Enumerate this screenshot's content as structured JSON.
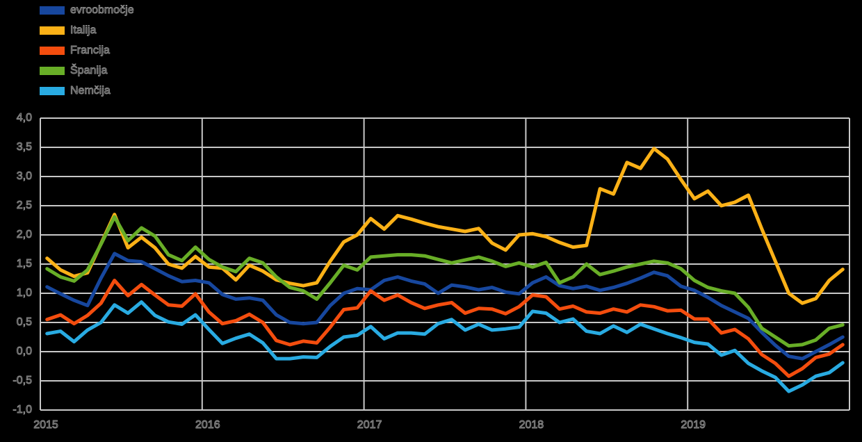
{
  "background_color": "#000000",
  "legend": {
    "position": "top-left",
    "items": [
      {
        "label": "evroobmočje",
        "color": "#17479E"
      },
      {
        "label": "Italija",
        "color": "#FBB117"
      },
      {
        "label": "Francija",
        "color": "#F44D0E"
      },
      {
        "label": "Španija",
        "color": "#68AE27"
      },
      {
        "label": "Nemčija",
        "color": "#29ABE2"
      }
    ]
  },
  "chart_data": {
    "type": "line",
    "title": "",
    "xlabel": "",
    "ylabel": "",
    "frequency": "monthly",
    "x_start": "2015-01",
    "x_end": "2019-12",
    "x_tick_labels": [
      "2015",
      "2016",
      "2017",
      "2018",
      "2019"
    ],
    "y_axis": {
      "min": -1.0,
      "max": 4.0,
      "step": 0.5,
      "tick_labels": [
        "4,0",
        "3,5",
        "3,0",
        "2,5",
        "2,0",
        "1,5",
        "1,0",
        "0,5",
        "0,0",
        "-0,5",
        "-1,0"
      ]
    },
    "grid": true,
    "grid_color": "#C8C8C8",
    "legend_position": "top-left",
    "series": [
      {
        "name": "evroobmočje",
        "color": "#17479E",
        "values": [
          1.11,
          0.99,
          0.88,
          0.79,
          1.26,
          1.68,
          1.56,
          1.54,
          1.42,
          1.3,
          1.2,
          1.22,
          1.18,
          0.98,
          0.9,
          0.92,
          0.88,
          0.63,
          0.5,
          0.48,
          0.5,
          0.79,
          1.0,
          1.08,
          1.06,
          1.22,
          1.28,
          1.21,
          1.16,
          1.0,
          1.14,
          1.11,
          1.06,
          1.1,
          1.02,
          0.99,
          1.18,
          1.28,
          1.13,
          1.08,
          1.12,
          1.05,
          1.1,
          1.17,
          1.26,
          1.36,
          1.3,
          1.12,
          1.05,
          0.93,
          0.79,
          0.68,
          0.57,
          0.33,
          0.11,
          -0.08,
          -0.12,
          0.0,
          0.12,
          0.25
        ]
      },
      {
        "name": "Italija",
        "color": "#FBB117",
        "values": [
          1.6,
          1.4,
          1.29,
          1.35,
          1.85,
          2.35,
          1.78,
          1.96,
          1.78,
          1.5,
          1.43,
          1.63,
          1.45,
          1.43,
          1.23,
          1.48,
          1.38,
          1.23,
          1.17,
          1.13,
          1.18,
          1.55,
          1.88,
          2.0,
          2.28,
          2.1,
          2.33,
          2.27,
          2.2,
          2.14,
          2.1,
          2.06,
          2.11,
          1.86,
          1.74,
          2.0,
          2.02,
          1.97,
          1.87,
          1.79,
          1.82,
          2.79,
          2.7,
          3.24,
          3.14,
          3.48,
          3.3,
          2.95,
          2.62,
          2.75,
          2.5,
          2.56,
          2.68,
          2.1,
          1.55,
          1.0,
          0.83,
          0.91,
          1.22,
          1.41
        ]
      },
      {
        "name": "Francija",
        "color": "#F44D0E",
        "values": [
          0.55,
          0.63,
          0.48,
          0.62,
          0.83,
          1.22,
          0.96,
          1.15,
          0.97,
          0.8,
          0.78,
          0.99,
          0.68,
          0.48,
          0.53,
          0.64,
          0.5,
          0.19,
          0.12,
          0.18,
          0.15,
          0.42,
          0.72,
          0.75,
          1.04,
          0.88,
          0.97,
          0.84,
          0.74,
          0.8,
          0.84,
          0.66,
          0.74,
          0.73,
          0.65,
          0.77,
          0.97,
          0.94,
          0.73,
          0.78,
          0.68,
          0.66,
          0.73,
          0.68,
          0.8,
          0.77,
          0.7,
          0.71,
          0.56,
          0.56,
          0.32,
          0.38,
          0.22,
          -0.05,
          -0.2,
          -0.42,
          -0.29,
          -0.1,
          -0.04,
          0.12
        ]
      },
      {
        "name": "Španija",
        "color": "#68AE27",
        "values": [
          1.42,
          1.28,
          1.21,
          1.4,
          1.84,
          2.31,
          1.9,
          2.12,
          1.98,
          1.66,
          1.56,
          1.79,
          1.58,
          1.45,
          1.37,
          1.6,
          1.52,
          1.28,
          1.1,
          1.04,
          0.9,
          1.18,
          1.48,
          1.4,
          1.62,
          1.64,
          1.66,
          1.66,
          1.64,
          1.58,
          1.52,
          1.57,
          1.62,
          1.55,
          1.46,
          1.52,
          1.45,
          1.53,
          1.18,
          1.28,
          1.5,
          1.32,
          1.38,
          1.45,
          1.5,
          1.55,
          1.52,
          1.42,
          1.22,
          1.1,
          1.04,
          1.0,
          0.76,
          0.4,
          0.25,
          0.1,
          0.12,
          0.2,
          0.4,
          0.46
        ]
      },
      {
        "name": "Nemčija",
        "color": "#29ABE2",
        "values": [
          0.31,
          0.35,
          0.17,
          0.37,
          0.5,
          0.8,
          0.66,
          0.85,
          0.62,
          0.51,
          0.47,
          0.63,
          0.38,
          0.14,
          0.23,
          0.3,
          0.15,
          -0.12,
          -0.12,
          -0.09,
          -0.1,
          0.09,
          0.25,
          0.28,
          0.43,
          0.22,
          0.32,
          0.32,
          0.3,
          0.48,
          0.55,
          0.37,
          0.47,
          0.37,
          0.39,
          0.42,
          0.69,
          0.66,
          0.5,
          0.56,
          0.35,
          0.31,
          0.44,
          0.33,
          0.47,
          0.39,
          0.31,
          0.24,
          0.16,
          0.13,
          -0.06,
          0.02,
          -0.2,
          -0.33,
          -0.44,
          -0.68,
          -0.57,
          -0.42,
          -0.36,
          -0.19
        ]
      }
    ]
  }
}
